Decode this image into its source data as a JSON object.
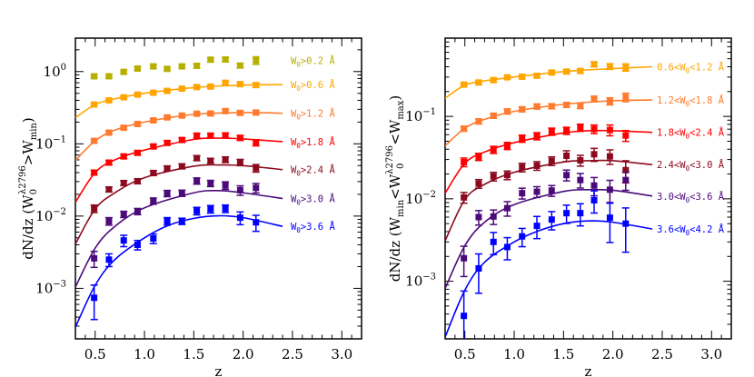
{
  "chart_data": [
    {
      "type": "scatter",
      "panel": "left",
      "xlabel": "z",
      "ylabel": {
        "pre": "dN/dz  (W",
        "sub": "0",
        "sup": "λ2796",
        "mid": ">W",
        "sub2": "min",
        "post": ")"
      },
      "xlim": [
        0.3,
        3.2
      ],
      "ylim": [
        0.0002,
        2.9
      ],
      "yscale": "log",
      "xticks": [
        "0.5",
        "1.0",
        "1.5",
        "2.0",
        "2.5",
        "3.0"
      ],
      "yticks": [
        {
          "base": "10",
          "exp": "0",
          "v": 1
        },
        {
          "base": "10",
          "exp": "−1",
          "v": 0.1
        },
        {
          "base": "10",
          "exp": "−2",
          "v": 0.01
        },
        {
          "base": "10",
          "exp": "−3",
          "v": 0.001
        }
      ],
      "x": [
        0.49,
        0.64,
        0.79,
        0.93,
        1.09,
        1.23,
        1.38,
        1.53,
        1.67,
        1.82,
        1.97,
        2.13
      ],
      "series": [
        {
          "label": {
            "pre": "W",
            "sub": "0",
            "post": ">0.2 Å"
          },
          "color": "#b5b000",
          "values": [
            0.86,
            0.86,
            0.99,
            1.1,
            1.18,
            1.09,
            1.18,
            1.2,
            1.46,
            1.47,
            1.21,
            1.43
          ],
          "yerr_frac": [
            0.05,
            0.05,
            0.05,
            0.05,
            0.06,
            0.05,
            0.05,
            0.06,
            0.06,
            0.07,
            0.07,
            0.12
          ],
          "fit": null
        },
        {
          "label": {
            "pre": "W",
            "sub": "0",
            "post": ">0.6 Å"
          },
          "color": "#ffa500",
          "values": [
            0.35,
            0.4,
            0.44,
            0.48,
            0.51,
            0.54,
            0.58,
            0.61,
            0.62,
            0.7,
            0.67,
            0.65
          ],
          "yerr_frac": [
            0.04,
            0.04,
            0.04,
            0.04,
            0.04,
            0.04,
            0.04,
            0.05,
            0.05,
            0.06,
            0.06,
            0.07
          ],
          "fit": {
            "z": [
              0.3,
              0.5,
              0.7,
              1.0,
              1.5,
              2.0,
              2.4
            ],
            "y": [
              0.23,
              0.35,
              0.42,
              0.5,
              0.6,
              0.65,
              0.66
            ]
          }
        },
        {
          "label": {
            "pre": "W",
            "sub": "0",
            "post": ">1.2 Å"
          },
          "color": "#ff7a2e",
          "values": [
            0.11,
            0.143,
            0.167,
            0.188,
            0.211,
            0.232,
            0.246,
            0.261,
            0.263,
            0.284,
            0.268,
            0.271
          ],
          "yerr_frac": [
            0.05,
            0.05,
            0.05,
            0.05,
            0.05,
            0.05,
            0.05,
            0.05,
            0.05,
            0.06,
            0.06,
            0.07
          ],
          "fit": {
            "z": [
              0.3,
              0.5,
              0.7,
              1.0,
              1.5,
              2.0,
              2.4
            ],
            "y": [
              0.059,
              0.11,
              0.155,
              0.2,
              0.255,
              0.27,
              0.265
            ]
          }
        },
        {
          "label": {
            "pre": "W",
            "sub": "0",
            "post": ">1.8 Å"
          },
          "color": "#ff0000",
          "values": [
            0.04,
            0.055,
            0.067,
            0.075,
            0.092,
            0.103,
            0.113,
            0.13,
            0.13,
            0.131,
            0.121,
            0.104
          ],
          "yerr_frac": [
            0.07,
            0.07,
            0.07,
            0.07,
            0.07,
            0.07,
            0.07,
            0.07,
            0.07,
            0.08,
            0.08,
            0.1
          ],
          "fit": {
            "z": [
              0.3,
              0.5,
              0.7,
              1.0,
              1.5,
              1.75,
              2.0,
              2.4
            ],
            "y": [
              0.0155,
              0.04,
              0.06,
              0.082,
              0.115,
              0.12,
              0.117,
              0.107
            ]
          }
        },
        {
          "label": {
            "pre": "W",
            "sub": "0",
            "post": ">2.4 Å"
          },
          "color": "#8b0a1e",
          "values": [
            0.0127,
            0.0234,
            0.0287,
            0.0304,
            0.0395,
            0.0457,
            0.0489,
            0.0635,
            0.0582,
            0.0605,
            0.0554,
            0.0461
          ],
          "yerr_frac": [
            0.12,
            0.08,
            0.08,
            0.08,
            0.08,
            0.08,
            0.08,
            0.08,
            0.08,
            0.09,
            0.1,
            0.12
          ],
          "fit": {
            "z": [
              0.3,
              0.5,
              0.7,
              1.0,
              1.5,
              1.75,
              2.0,
              2.4
            ],
            "y": [
              0.0041,
              0.0125,
              0.021,
              0.034,
              0.049,
              0.051,
              0.05,
              0.044
            ]
          }
        },
        {
          "label": {
            "pre": "W",
            "sub": "0",
            "post": ">3.0 Å"
          },
          "color": "#4b0a7a",
          "values": [
            0.0026,
            0.0085,
            0.0106,
            0.0116,
            0.0162,
            0.0206,
            0.0208,
            0.0307,
            0.0284,
            0.0266,
            0.0228,
            0.0246
          ],
          "yerr_frac": [
            0.25,
            0.12,
            0.1,
            0.1,
            0.1,
            0.1,
            0.1,
            0.1,
            0.1,
            0.12,
            0.15,
            0.15
          ],
          "fit": {
            "z": [
              0.3,
              0.5,
              0.7,
              1.0,
              1.5,
              1.75,
              2.0,
              2.4
            ],
            "y": [
              0.00104,
              0.0036,
              0.0072,
              0.013,
              0.021,
              0.0225,
              0.021,
              0.0175
            ]
          }
        },
        {
          "label": {
            "pre": "W",
            "sub": "0",
            "post": ">3.6 Å"
          },
          "color": "#0000ff",
          "values": [
            0.00074,
            0.0025,
            0.0046,
            0.004,
            0.0049,
            0.0085,
            0.0085,
            0.0118,
            0.0125,
            0.0127,
            0.0095,
            0.0082
          ],
          "yerr_frac": [
            0.5,
            0.2,
            0.18,
            0.15,
            0.15,
            0.12,
            0.1,
            0.12,
            0.12,
            0.12,
            0.2,
            0.25
          ],
          "fit": {
            "z": [
              0.3,
              0.5,
              0.7,
              1.0,
              1.25,
              1.5,
              1.75,
              2.0,
              2.4
            ],
            "y": [
              0.00029,
              0.0011,
              0.0025,
              0.005,
              0.0075,
              0.0093,
              0.0101,
              0.0095,
              0.0072
            ]
          }
        }
      ]
    },
    {
      "type": "scatter",
      "panel": "right",
      "xlabel": "z",
      "ylabel": {
        "pre": "dN/dz  (W",
        "sub": "min",
        "mid": "<W",
        "sub2": "0",
        "sup": "λ2796",
        "post2": "<W",
        "sub3": "max",
        "post": ")"
      },
      "xlim": [
        0.3,
        3.2
      ],
      "ylim": [
        0.0002,
        0.89
      ],
      "yscale": "log",
      "xticks": [
        "0.5",
        "1.0",
        "1.5",
        "2.0",
        "2.5",
        "3.0"
      ],
      "yticks": [
        {
          "base": "10",
          "exp": "−1",
          "v": 0.1
        },
        {
          "base": "10",
          "exp": "−2",
          "v": 0.01
        },
        {
          "base": "10",
          "exp": "−3",
          "v": 0.001
        }
      ],
      "x": [
        0.49,
        0.64,
        0.79,
        0.93,
        1.08,
        1.23,
        1.38,
        1.53,
        1.67,
        1.81,
        1.97,
        2.13
      ],
      "series": [
        {
          "label": {
            "pre": "0.6<W",
            "sub": "0",
            "post": "<1.2 Å"
          },
          "color": "#ffa500",
          "values": [
            0.243,
            0.258,
            0.276,
            0.298,
            0.303,
            0.311,
            0.341,
            0.35,
            0.356,
            0.429,
            0.404,
            0.394
          ],
          "yerr_frac": [
            0.05,
            0.05,
            0.05,
            0.05,
            0.05,
            0.05,
            0.05,
            0.05,
            0.06,
            0.07,
            0.08,
            0.1
          ],
          "fit": {
            "z": [
              0.3,
              0.5,
              0.7,
              1.0,
              1.5,
              2.0,
              2.4
            ],
            "y": [
              0.166,
              0.24,
              0.27,
              0.3,
              0.35,
              0.38,
              0.4
            ]
          }
        },
        {
          "label": {
            "pre": "1.2<W",
            "sub": "0",
            "post": "<1.8 Å"
          },
          "color": "#ff7a2e",
          "values": [
            0.071,
            0.087,
            0.102,
            0.115,
            0.122,
            0.132,
            0.133,
            0.138,
            0.135,
            0.163,
            0.153,
            0.171
          ],
          "yerr_frac": [
            0.07,
            0.07,
            0.07,
            0.07,
            0.07,
            0.07,
            0.07,
            0.07,
            0.08,
            0.08,
            0.1,
            0.12
          ],
          "fit": {
            "z": [
              0.3,
              0.5,
              0.7,
              1.0,
              1.5,
              2.0,
              2.4
            ],
            "y": [
              0.044,
              0.072,
              0.092,
              0.115,
              0.14,
              0.155,
              0.158
            ]
          }
        },
        {
          "label": {
            "pre": "1.8<W",
            "sub": "0",
            "post": "<2.4 Å"
          },
          "color": "#ff0000",
          "values": [
            0.0279,
            0.0324,
            0.0394,
            0.044,
            0.0539,
            0.0577,
            0.0655,
            0.0671,
            0.0731,
            0.0702,
            0.0684,
            0.0586
          ],
          "yerr_frac": [
            0.12,
            0.1,
            0.1,
            0.1,
            0.1,
            0.1,
            0.1,
            0.1,
            0.1,
            0.12,
            0.15,
            0.15
          ],
          "fit": {
            "z": [
              0.3,
              0.5,
              0.7,
              1.0,
              1.5,
              1.75,
              2.0,
              2.4
            ],
            "y": [
              0.0117,
              0.027,
              0.037,
              0.048,
              0.063,
              0.067,
              0.067,
              0.064
            ]
          }
        },
        {
          "label": {
            "pre": "2.4<W",
            "sub": "0",
            "post": "<3.0 Å"
          },
          "color": "#8b0a1e",
          "values": [
            0.0104,
            0.0153,
            0.0187,
            0.0194,
            0.0241,
            0.0252,
            0.0288,
            0.0333,
            0.0293,
            0.0347,
            0.0327,
            0.0223
          ],
          "yerr_frac": [
            0.15,
            0.12,
            0.12,
            0.12,
            0.12,
            0.12,
            0.12,
            0.15,
            0.15,
            0.18,
            0.2,
            0.3
          ],
          "fit": {
            "z": [
              0.3,
              0.5,
              0.7,
              1.0,
              1.5,
              1.75,
              2.0,
              2.4
            ],
            "y": [
              0.0031,
              0.0098,
              0.015,
              0.021,
              0.028,
              0.029,
              0.029,
              0.026
            ]
          }
        },
        {
          "label": {
            "pre": "3.0<W",
            "sub": "0",
            "post": "<3.6 Å"
          },
          "color": "#4b0a7a",
          "values": [
            0.0019,
            0.006,
            0.0061,
            0.0077,
            0.0117,
            0.0122,
            0.0126,
            0.0194,
            0.0169,
            0.0145,
            0.0129,
            0.0169
          ],
          "yerr_frac": [
            0.4,
            0.2,
            0.2,
            0.2,
            0.15,
            0.15,
            0.15,
            0.15,
            0.2,
            0.25,
            0.3,
            0.25
          ],
          "fit": {
            "z": [
              0.3,
              0.5,
              0.7,
              1.0,
              1.5,
              1.75,
              2.0,
              2.4
            ],
            "y": [
              0.00082,
              0.0027,
              0.0052,
              0.0085,
              0.0123,
              0.0129,
              0.0127,
              0.0108
            ]
          }
        },
        {
          "label": {
            "pre": "3.6<W",
            "sub": "0",
            "post": "<4.2 Å"
          },
          "color": "#0000ff",
          "values": [
            0.00038,
            0.00143,
            0.003,
            0.0026,
            0.0035,
            0.0047,
            0.0056,
            0.0067,
            0.0067,
            0.0096,
            0.0059,
            0.005
          ],
          "yerr_frac": [
            1.0,
            0.5,
            0.3,
            0.3,
            0.25,
            0.3,
            0.25,
            0.25,
            0.3,
            0.3,
            0.5,
            0.55
          ],
          "fit": {
            "z": [
              0.3,
              0.5,
              0.7,
              1.0,
              1.25,
              1.5,
              1.75,
              2.0,
              2.4
            ],
            "y": [
              0.00021,
              0.00078,
              0.0017,
              0.003,
              0.0041,
              0.005,
              0.0054,
              0.0052,
              0.0043
            ]
          }
        }
      ]
    }
  ]
}
